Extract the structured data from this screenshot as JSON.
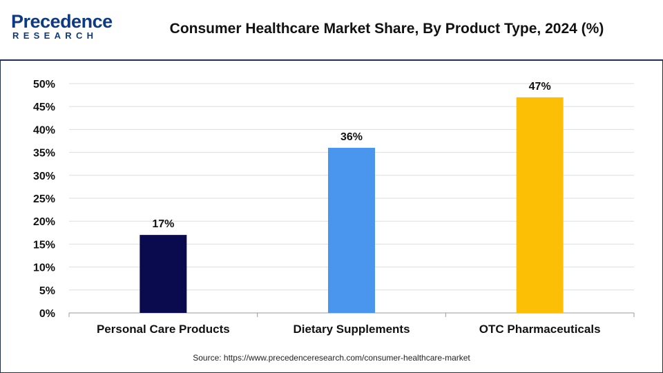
{
  "header": {
    "logo_main": "Precedence",
    "logo_sub": "RESEARCH",
    "title": "Consumer Healthcare Market Share, By Product Type, 2024 (%)"
  },
  "chart_data": {
    "type": "bar",
    "title": "Consumer Healthcare Market Share, By Product Type, 2024 (%)",
    "categories": [
      "Personal Care Products",
      "Dietary Supplements",
      "OTC Pharmaceuticals"
    ],
    "values": [
      17,
      36,
      47
    ],
    "data_labels": [
      "17%",
      "36%",
      "47%"
    ],
    "colors": [
      "#0a0a4e",
      "#4a96ef",
      "#fcbf06"
    ],
    "xlabel": "",
    "ylabel": "",
    "ylim": [
      0,
      50
    ],
    "yticks": [
      "0%",
      "5%",
      "10%",
      "15%",
      "20%",
      "25%",
      "30%",
      "35%",
      "40%",
      "45%",
      "50%"
    ],
    "grid": true
  },
  "footer": {
    "source": "Source: https://www.precedenceresearch.com/consumer-healthcare-market"
  }
}
